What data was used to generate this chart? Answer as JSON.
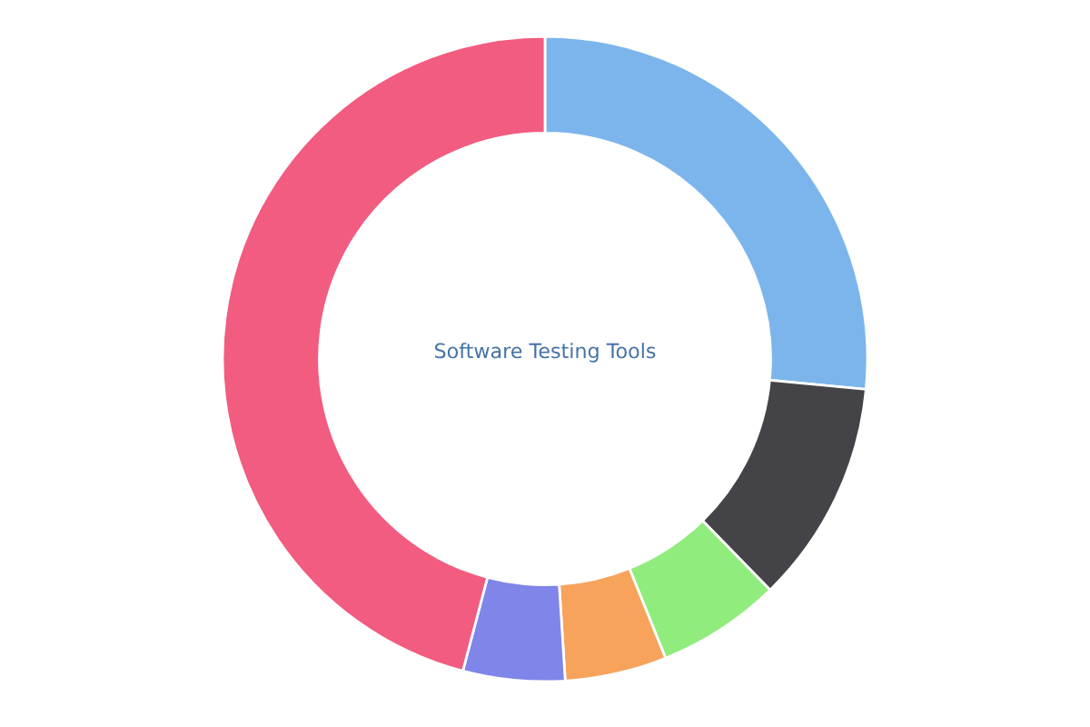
{
  "chart_data": {
    "type": "donut",
    "title": "Software Testing Tools",
    "categories": [
      null,
      null,
      null,
      null,
      null,
      null
    ],
    "values": [
      26.5,
      11.2,
      6.2,
      5.1,
      5.1,
      45.9
    ],
    "colors": [
      "#7cb5ec",
      "#434348",
      "#90ed7d",
      "#f7a35c",
      "#8085e9",
      "#f15c80"
    ],
    "legend": false
  }
}
